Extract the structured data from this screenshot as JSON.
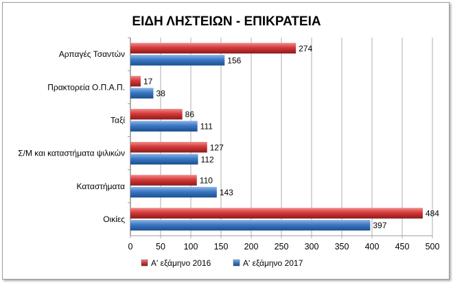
{
  "chart_data": {
    "type": "bar",
    "orientation": "horizontal",
    "title": "ΕΙΔΗ ΛΗΣΤΕΙΩΝ - ΕΠΙΚΡΑΤΕΙΑ",
    "categories": [
      "Αρπαγές Τσαντών",
      "Πρακτορεία Ο.Π.Α.Π.",
      "Ταξί",
      "Σ/Μ και καταστήματα  ψιλικών",
      "Καταστήματα",
      "Οικίες"
    ],
    "series": [
      {
        "name": "Α' εξάμηνο 2016",
        "values": [
          274,
          17,
          86,
          127,
          110,
          484
        ],
        "color": "#c0272d"
      },
      {
        "name": "Α' εξάμηνο 2017",
        "values": [
          156,
          38,
          111,
          112,
          143,
          397
        ],
        "color": "#2f6db5"
      }
    ],
    "xlim": [
      0,
      500
    ],
    "xticks": [
      "0",
      "50",
      "100",
      "150",
      "200",
      "250",
      "300",
      "350",
      "400",
      "450",
      "500"
    ],
    "grid": true,
    "legend": "bottom"
  }
}
